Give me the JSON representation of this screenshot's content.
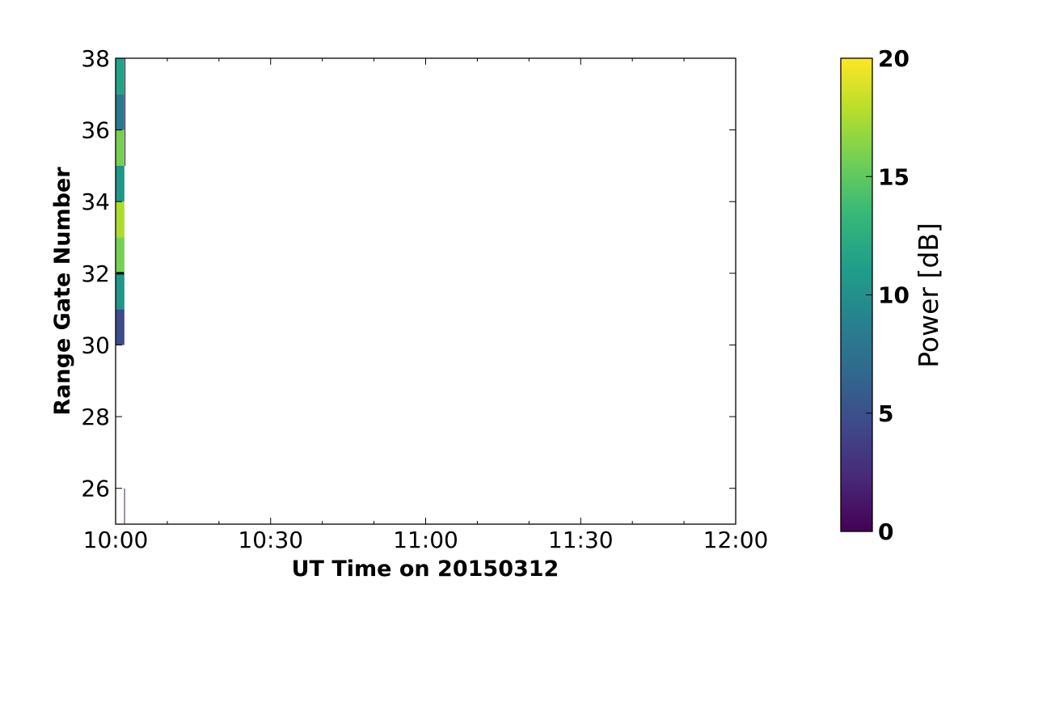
{
  "chart_data": {
    "type": "heatmap",
    "title": "",
    "xlabel": "UT Time on 20150312",
    "ylabel": "Range Gate Number",
    "x_range_minutes_after_start": [
      0,
      120
    ],
    "x_ticks": [
      {
        "minute": 0,
        "label": "10:00"
      },
      {
        "minute": 30,
        "label": "10:30"
      },
      {
        "minute": 60,
        "label": "11:00"
      },
      {
        "minute": 90,
        "label": "11:30"
      },
      {
        "minute": 120,
        "label": "12:00"
      }
    ],
    "ylim": [
      25,
      38
    ],
    "y_ticks": [
      26,
      28,
      30,
      32,
      34,
      36,
      38
    ],
    "cells": [
      {
        "t0": 0.0,
        "t1": 1.7,
        "gate0": 30,
        "gate1": 31,
        "power": 4.5
      },
      {
        "t0": 0.0,
        "t1": 1.7,
        "gate0": 31,
        "gate1": 32,
        "power": 10.5
      },
      {
        "t0": 0.0,
        "t1": 1.7,
        "gate0": 32,
        "gate1": 33,
        "power": 15.8
      },
      {
        "t0": 0.0,
        "t1": 1.7,
        "gate0": 33,
        "gate1": 34,
        "power": 17.5
      },
      {
        "t0": 0.0,
        "t1": 1.7,
        "gate0": 34,
        "gate1": 35,
        "power": 10.5
      },
      {
        "t0": 0.0,
        "t1": 1.7,
        "gate0": 35,
        "gate1": 36,
        "power": 15.8
      },
      {
        "t0": 0.0,
        "t1": 1.7,
        "gate0": 36,
        "gate1": 37,
        "power": 8.0
      },
      {
        "t0": 0.0,
        "t1": 1.7,
        "gate0": 37,
        "gate1": 38,
        "power": 11.5
      },
      {
        "t0": 1.65,
        "t1": 1.8,
        "gate0": 25,
        "gate1": 26,
        "power": 1.5
      },
      {
        "t0": 1.75,
        "t1": 1.9,
        "gate0": 35,
        "gate1": 38,
        "power": 0.5
      }
    ],
    "dashed_line": {
      "gate": 32,
      "t0": 0.2,
      "t1": 2.0
    },
    "colorbar": {
      "label": "Power [dB]",
      "range": [
        0,
        20
      ],
      "ticks": [
        0,
        5,
        10,
        15,
        20
      ],
      "colormap": [
        "#440154",
        "#482878",
        "#3e4989",
        "#31688e",
        "#26828e",
        "#1f9e89",
        "#35b779",
        "#6ece58",
        "#b5de2b",
        "#fde725"
      ]
    }
  }
}
